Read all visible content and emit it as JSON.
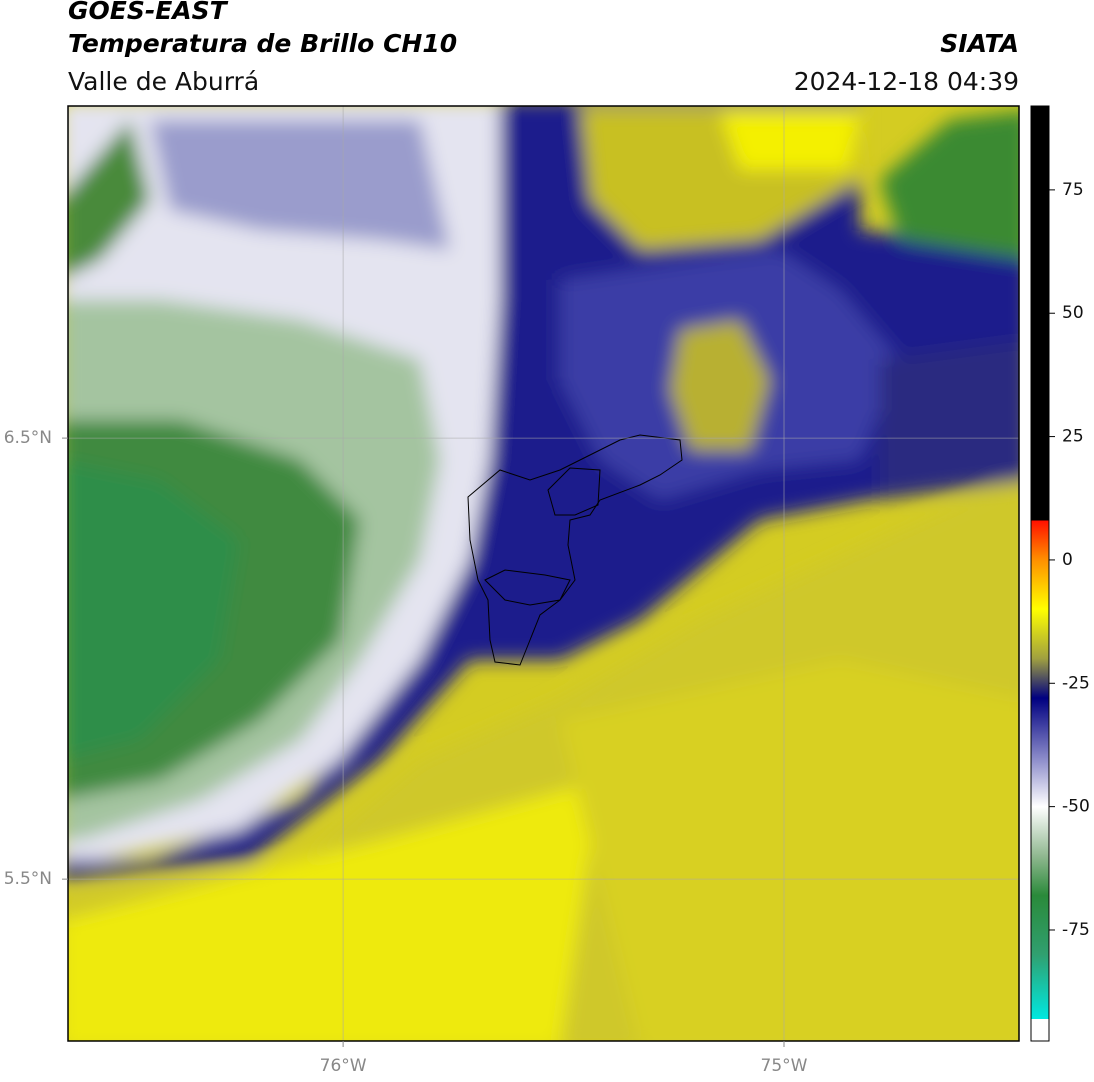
{
  "header": {
    "title": "GOES-EAST",
    "product": "Temperatura de Brillo CH10",
    "institution": "SIATA",
    "region": "Valle de Aburrá",
    "datetime": "2024-12-18 04:39"
  },
  "map": {
    "lonlim": [
      -76.624,
      -74.467
    ],
    "latlim": [
      5.133,
      7.253
    ],
    "lon_ticks": [
      {
        "value": -76,
        "label": "76°W"
      },
      {
        "value": -75,
        "label": "75°W"
      }
    ],
    "lat_ticks": [
      {
        "value": 6.5,
        "label": "6.5°N"
      },
      {
        "value": 5.5,
        "label": "5.5°N"
      }
    ],
    "grid": true
  },
  "colorbar": {
    "lim": [
      -97.5,
      92
    ],
    "ticks": [
      75,
      50,
      25,
      0,
      -25,
      -50,
      -75
    ],
    "stops": [
      {
        "value": -97.5,
        "color": "#ffffff"
      },
      {
        "value": -93,
        "color": "#ffffff"
      },
      {
        "value": -93,
        "color": "#00e8e0"
      },
      {
        "value": -80,
        "color": "#30a070"
      },
      {
        "value": -68,
        "color": "#2a8a3a"
      },
      {
        "value": -60,
        "color": "#90b890"
      },
      {
        "value": -50,
        "color": "#ffffff"
      },
      {
        "value": -40,
        "color": "#8888c8"
      },
      {
        "value": -28,
        "color": "#000080"
      },
      {
        "value": -20,
        "color": "#a0a040"
      },
      {
        "value": -10,
        "color": "#ffff00"
      },
      {
        "value": 0,
        "color": "#ff9000"
      },
      {
        "value": 8,
        "color": "#ff1000"
      },
      {
        "value": 8,
        "color": "#000000"
      },
      {
        "value": 92,
        "color": "#000000"
      }
    ]
  }
}
